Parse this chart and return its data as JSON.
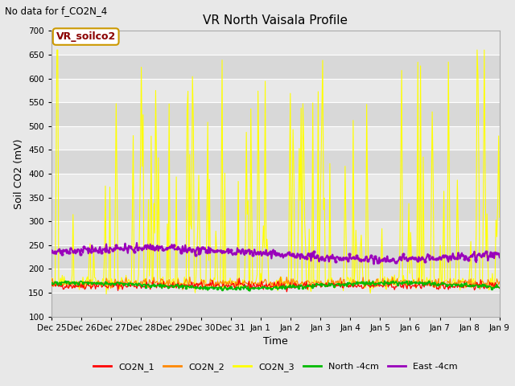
{
  "title": "VR North Vaisala Profile",
  "suptitle": "No data for f_CO2N_4",
  "ylabel": "Soil CO2 (mV)",
  "xlabel": "Time",
  "ylim": [
    100,
    700
  ],
  "yticks": [
    100,
    150,
    200,
    250,
    300,
    350,
    400,
    450,
    500,
    550,
    600,
    650,
    700
  ],
  "xtick_labels": [
    "Dec 25",
    "Dec 26",
    "Dec 27",
    "Dec 28",
    "Dec 29",
    "Dec 30",
    "Dec 31",
    "Jan 1",
    "Jan 2",
    "Jan 3",
    "Jan 4",
    "Jan 5",
    "Jan 6",
    "Jan 7",
    "Jan 8",
    "Jan 9"
  ],
  "legend_entries": [
    "CO2N_1",
    "CO2N_2",
    "CO2N_3",
    "North -4cm",
    "East -4cm"
  ],
  "legend_colors": [
    "#ff0000",
    "#ff8800",
    "#ffff00",
    "#00bb00",
    "#9900bb"
  ],
  "annotation_text": "VR_soilco2",
  "fig_bg_color": "#e8e8e8",
  "plot_bg_color": "#e8e8e8",
  "grid_color": "#ffffff",
  "n_points": 500,
  "seed": 42
}
